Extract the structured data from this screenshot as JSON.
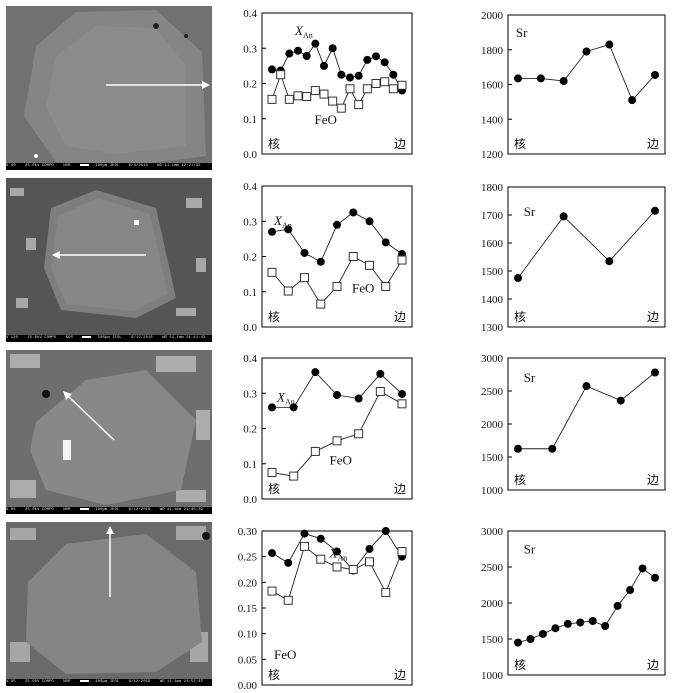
{
  "image_panels": [
    {
      "footer": [
        "X 40",
        "25.0kV COMPO",
        "NOR",
        "100µm JEOL",
        "6/4/2018",
        "WD 11.1mm 12:21:32"
      ]
    },
    {
      "footer": [
        "X 120",
        "25.0kV COMPO",
        "NOR",
        "100µm JEOL",
        "6/12/2018",
        "WD 11.1mm 21:41:43"
      ]
    },
    {
      "footer": [
        "X 85",
        "25.0kV COMPO",
        "NOR",
        "100µm JEOL",
        "6/12/2018",
        "WD 11.1mm 21:45:39"
      ]
    },
    {
      "footer": [
        "X 95",
        "25.0kV COMPO",
        "NOR",
        "100µm JEOL",
        "6/12/2018",
        "WD 11.1mm 21:52:45"
      ]
    }
  ],
  "chart_data": [
    {
      "type": "line",
      "row": 1,
      "ylim": [
        0,
        0.4
      ],
      "yticks": [
        "0.0",
        "0.1",
        "0.2",
        "0.3",
        "0.4"
      ],
      "core_label": "核",
      "rim_label": "边",
      "series": [
        {
          "name": "X_An",
          "marker": "filled-circle",
          "values": [
            0.24,
            0.237,
            0.285,
            0.293,
            0.278,
            0.313,
            0.25,
            0.3,
            0.225,
            0.217,
            0.222,
            0.267,
            0.277,
            0.26,
            0.225,
            0.18
          ]
        },
        {
          "name": "FeO",
          "marker": "open-square",
          "values": [
            0.155,
            0.225,
            0.155,
            0.165,
            0.163,
            0.18,
            0.17,
            0.15,
            0.13,
            0.185,
            0.14,
            0.185,
            0.2,
            0.205,
            0.185,
            0.195
          ]
        }
      ]
    },
    {
      "type": "line",
      "row": 1,
      "ylim": [
        1200,
        2000
      ],
      "yticks": [
        "1200",
        "1400",
        "1600",
        "1800",
        "2000"
      ],
      "core_label": "核",
      "rim_label": "边",
      "series": [
        {
          "name": "Sr",
          "marker": "filled-circle",
          "values": [
            1635,
            1635,
            1620,
            1790,
            1830,
            1510,
            1655
          ]
        }
      ]
    },
    {
      "type": "line",
      "row": 2,
      "ylim": [
        0,
        0.4
      ],
      "yticks": [
        "0.0",
        "0.1",
        "0.2",
        "0.3",
        "0.4"
      ],
      "core_label": "核",
      "rim_label": "边",
      "series": [
        {
          "name": "X_An",
          "marker": "filled-circle",
          "values": [
            0.27,
            0.277,
            0.21,
            0.185,
            0.29,
            0.325,
            0.3,
            0.24,
            0.207
          ]
        },
        {
          "name": "FeO",
          "marker": "open-square",
          "values": [
            0.155,
            0.102,
            0.14,
            0.065,
            0.115,
            0.2,
            0.175,
            0.115,
            0.19
          ]
        }
      ]
    },
    {
      "type": "line",
      "row": 2,
      "ylim": [
        1300,
        1800
      ],
      "yticks": [
        "1300",
        "1400",
        "1500",
        "1600",
        "1700",
        "1800"
      ],
      "core_label": "核",
      "rim_label": "边",
      "series": [
        {
          "name": "Sr",
          "marker": "filled-circle",
          "values": [
            1475,
            1695,
            1535,
            1715
          ]
        }
      ]
    },
    {
      "type": "line",
      "row": 3,
      "ylim": [
        0,
        0.4
      ],
      "yticks": [
        "0.0",
        "0.1",
        "0.2",
        "0.3",
        "0.4"
      ],
      "core_label": "核",
      "rim_label": "边",
      "series": [
        {
          "name": "X_An",
          "marker": "filled-circle",
          "values": [
            0.26,
            0.26,
            0.36,
            0.295,
            0.285,
            0.355,
            0.298
          ]
        },
        {
          "name": "FeO",
          "marker": "open-square",
          "values": [
            0.075,
            0.065,
            0.135,
            0.165,
            0.185,
            0.305,
            0.27
          ]
        }
      ]
    },
    {
      "type": "line",
      "row": 3,
      "ylim": [
        1000,
        3000
      ],
      "yticks": [
        "1000",
        "1500",
        "2000",
        "2500",
        "3000"
      ],
      "core_label": "核",
      "rim_label": "边",
      "series": [
        {
          "name": "Sr",
          "marker": "filled-circle",
          "values": [
            1625,
            1625,
            2575,
            2355,
            2780
          ]
        }
      ]
    },
    {
      "type": "line",
      "row": 4,
      "ylim": [
        0,
        0.3
      ],
      "yticks": [
        "0.00",
        "0.05",
        "0.10",
        "0.15",
        "0.20",
        "0.25",
        "0.30"
      ],
      "core_label": "核",
      "rim_label": "边",
      "series": [
        {
          "name": "X_An",
          "marker": "filled-circle",
          "values": [
            0.257,
            0.238,
            0.295,
            0.285,
            0.26,
            0.223,
            0.265,
            0.3,
            0.25
          ]
        },
        {
          "name": "FeO",
          "marker": "open-square",
          "values": [
            0.183,
            0.165,
            0.27,
            0.245,
            0.23,
            0.225,
            0.24,
            0.18,
            0.26
          ]
        }
      ]
    },
    {
      "type": "line",
      "row": 4,
      "ylim": [
        1000,
        3000
      ],
      "yticks": [
        "1000",
        "1500",
        "2000",
        "2500",
        "3000"
      ],
      "core_label": "核",
      "rim_label": "边",
      "series": [
        {
          "name": "Sr",
          "marker": "filled-circle",
          "values": [
            1450,
            1500,
            1570,
            1650,
            1710,
            1730,
            1750,
            1680,
            1960,
            2180,
            2480,
            2350
          ]
        }
      ]
    }
  ]
}
